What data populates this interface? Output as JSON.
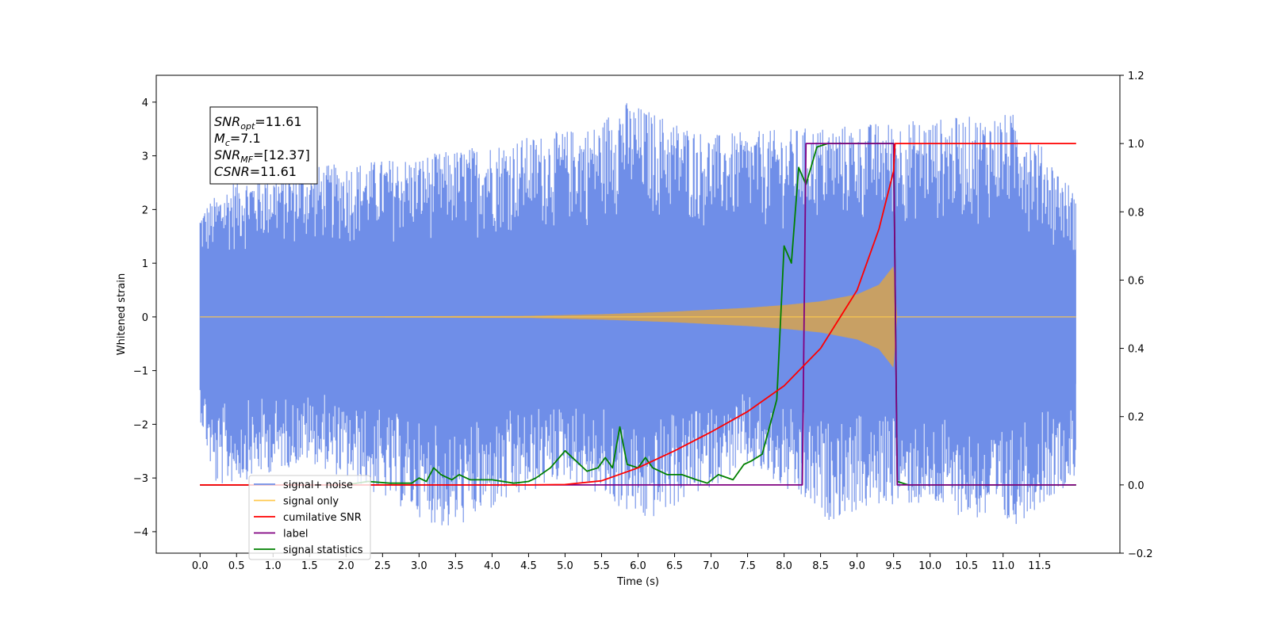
{
  "chart_data": {
    "type": "line",
    "xlabel": "Time (s)",
    "ylabel_left": "Whitened strain",
    "ylabel_right": "",
    "xlim": [
      -0.6,
      12.6
    ],
    "ylim_left": [
      -4.4,
      4.5
    ],
    "ylim_right": [
      -0.2,
      1.2
    ],
    "x_ticks": [
      "0.0",
      "0.5",
      "1.0",
      "1.5",
      "2.0",
      "2.5",
      "3.0",
      "3.5",
      "4.0",
      "4.5",
      "5.0",
      "5.5",
      "6.0",
      "6.5",
      "7.0",
      "7.5",
      "8.0",
      "8.5",
      "9.0",
      "9.5",
      "10.0",
      "10.5",
      "11.0",
      "11.5"
    ],
    "y_ticks_left": [
      "4",
      "3",
      "2",
      "1",
      "0",
      "−1",
      "−2",
      "−3",
      "−4"
    ],
    "y_ticks_right": [
      "1.2",
      "1.0",
      "0.8",
      "0.6",
      "0.4",
      "0.2",
      "0.0",
      "−0.2"
    ],
    "grid": false,
    "legend_position": "lower-left",
    "colors": {
      "signal_noise": "#6f8ee8",
      "signal_only": "#ffc94d",
      "signal_only_fill": "#c8a064",
      "cumulative_snr": "#ff0000",
      "label": "#800080",
      "signal_statistics": "#008000"
    },
    "series": [
      {
        "name": "signal+ noise",
        "axis": "left",
        "x_range": [
          0.0,
          12.0
        ],
        "envelope_upper": [
          [
            0.0,
            2.0
          ],
          [
            0.5,
            2.6
          ],
          [
            1.5,
            2.8
          ],
          [
            3.0,
            3.0
          ],
          [
            5.5,
            3.6
          ],
          [
            5.7,
            4.1
          ],
          [
            7.0,
            3.4
          ],
          [
            9.0,
            3.6
          ],
          [
            11.2,
            3.8
          ],
          [
            12.0,
            2.3
          ]
        ],
        "envelope_lower": [
          [
            0.0,
            -1.9
          ],
          [
            0.2,
            -3.2
          ],
          [
            1.5,
            -2.7
          ],
          [
            3.4,
            -4.0
          ],
          [
            5.0,
            -3.0
          ],
          [
            6.1,
            -3.85
          ],
          [
            7.5,
            -2.8
          ],
          [
            8.6,
            -3.8
          ],
          [
            9.4,
            -3.5
          ],
          [
            10.0,
            -3.55
          ],
          [
            11.1,
            -3.95
          ],
          [
            12.0,
            -3.0
          ]
        ]
      },
      {
        "name": "signal only",
        "axis": "left",
        "x_range": [
          0.0,
          12.0
        ],
        "chirp_amplitude": [
          [
            0.0,
            0.0
          ],
          [
            4.5,
            0.02
          ],
          [
            5.5,
            0.05
          ],
          [
            6.5,
            0.1
          ],
          [
            7.5,
            0.17
          ],
          [
            8.0,
            0.22
          ],
          [
            8.5,
            0.29
          ],
          [
            9.0,
            0.42
          ],
          [
            9.3,
            0.6
          ],
          [
            9.5,
            0.95
          ],
          [
            9.55,
            0.0
          ],
          [
            12.0,
            0.0
          ]
        ]
      },
      {
        "name": "cumilative SNR",
        "axis": "right",
        "points": [
          [
            0.0,
            0.0
          ],
          [
            4.5,
            0.0
          ],
          [
            5.0,
            0.001
          ],
          [
            5.5,
            0.012
          ],
          [
            6.0,
            0.05
          ],
          [
            6.5,
            0.1
          ],
          [
            7.0,
            0.155
          ],
          [
            7.5,
            0.215
          ],
          [
            8.0,
            0.29
          ],
          [
            8.5,
            0.4
          ],
          [
            9.0,
            0.57
          ],
          [
            9.3,
            0.75
          ],
          [
            9.5,
            0.92
          ],
          [
            9.52,
            1.0
          ],
          [
            12.0,
            1.0
          ]
        ]
      },
      {
        "name": "label",
        "axis": "right",
        "points": [
          [
            0.0,
            0.0
          ],
          [
            8.25,
            0.0
          ],
          [
            8.3,
            1.0
          ],
          [
            9.5,
            1.0
          ],
          [
            9.55,
            0.0
          ],
          [
            12.0,
            0.0
          ]
        ]
      },
      {
        "name": "signal statistics",
        "axis": "right",
        "points": [
          [
            0.0,
            0.0
          ],
          [
            2.0,
            0.0
          ],
          [
            2.3,
            0.01
          ],
          [
            2.6,
            0.005
          ],
          [
            2.9,
            0.005
          ],
          [
            3.0,
            0.02
          ],
          [
            3.1,
            0.01
          ],
          [
            3.2,
            0.05
          ],
          [
            3.3,
            0.03
          ],
          [
            3.45,
            0.015
          ],
          [
            3.55,
            0.03
          ],
          [
            3.7,
            0.015
          ],
          [
            4.0,
            0.015
          ],
          [
            4.3,
            0.005
          ],
          [
            4.5,
            0.01
          ],
          [
            4.6,
            0.02
          ],
          [
            4.8,
            0.05
          ],
          [
            5.0,
            0.1
          ],
          [
            5.15,
            0.07
          ],
          [
            5.3,
            0.04
          ],
          [
            5.45,
            0.05
          ],
          [
            5.55,
            0.08
          ],
          [
            5.65,
            0.05
          ],
          [
            5.75,
            0.17
          ],
          [
            5.85,
            0.06
          ],
          [
            6.0,
            0.05
          ],
          [
            6.1,
            0.08
          ],
          [
            6.2,
            0.05
          ],
          [
            6.4,
            0.03
          ],
          [
            6.6,
            0.03
          ],
          [
            6.8,
            0.015
          ],
          [
            6.95,
            0.005
          ],
          [
            7.1,
            0.03
          ],
          [
            7.3,
            0.015
          ],
          [
            7.45,
            0.06
          ],
          [
            7.55,
            0.07
          ],
          [
            7.7,
            0.09
          ],
          [
            7.9,
            0.25
          ],
          [
            8.0,
            0.7
          ],
          [
            8.1,
            0.65
          ],
          [
            8.2,
            0.93
          ],
          [
            8.3,
            0.88
          ],
          [
            8.45,
            0.99
          ],
          [
            8.6,
            1.0
          ],
          [
            9.0,
            1.0
          ],
          [
            9.5,
            1.0
          ],
          [
            9.55,
            0.01
          ],
          [
            9.7,
            0.0
          ],
          [
            12.0,
            0.0
          ]
        ]
      }
    ],
    "annotation_box": [
      {
        "base": "SNR",
        "sub": "opt",
        "value": "=11.61"
      },
      {
        "base": "M",
        "sub": "c",
        "value": "=7.1"
      },
      {
        "base": "SNR",
        "sub": "MF",
        "value": "=[12.37]"
      },
      {
        "base": "CSNR",
        "sub": "",
        "value": "=11.61"
      }
    ],
    "legend": [
      {
        "label": "signal+ noise",
        "color": "#6f8ee8"
      },
      {
        "label": "signal only",
        "color": "#ffc94d"
      },
      {
        "label": "cumilative SNR",
        "color": "#ff0000"
      },
      {
        "label": "label",
        "color": "#800080"
      },
      {
        "label": "signal statistics",
        "color": "#008000"
      }
    ]
  }
}
